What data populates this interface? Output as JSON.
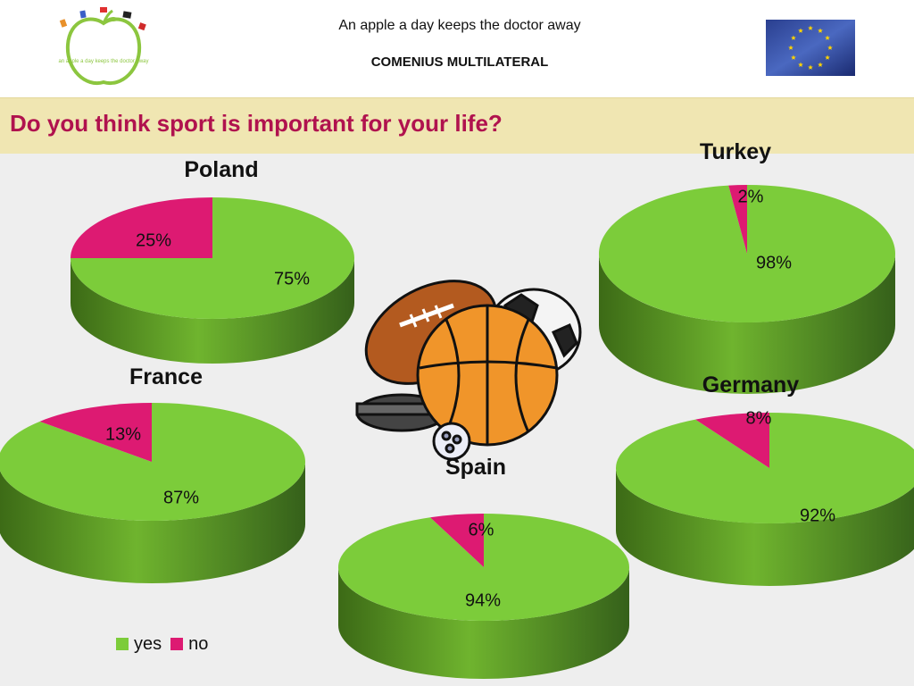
{
  "header": {
    "line1": "An apple a day keeps the doctor away",
    "line2": "COMENIUS MULTILATERAL",
    "logo_text": "an apple a day keeps the doctor away"
  },
  "question": "Do you think sport is important for your life?",
  "colors": {
    "yes": "#7ccc3a",
    "yes_side": "#4f8a1e",
    "no": "#dd1a72",
    "no_side": "#9a1050"
  },
  "legend": [
    {
      "label": "yes",
      "color": "#7ccc3a"
    },
    {
      "label": "no",
      "color": "#dd1a72"
    }
  ],
  "chart_data": [
    {
      "type": "pie",
      "title": "Poland",
      "labels": [
        "yes",
        "no"
      ],
      "values": [
        75,
        25
      ],
      "data_labels": [
        "75%",
        "25%"
      ]
    },
    {
      "type": "pie",
      "title": "Turkey",
      "labels": [
        "yes",
        "no"
      ],
      "values": [
        98,
        2
      ],
      "data_labels": [
        "98%",
        "2%"
      ]
    },
    {
      "type": "pie",
      "title": "France",
      "labels": [
        "yes",
        "no"
      ],
      "values": [
        87,
        13
      ],
      "data_labels": [
        "87%",
        "13%"
      ]
    },
    {
      "type": "pie",
      "title": "Germany",
      "labels": [
        "yes",
        "no"
      ],
      "values": [
        92,
        8
      ],
      "data_labels": [
        "92%",
        "8%"
      ]
    },
    {
      "type": "pie",
      "title": "Spain",
      "labels": [
        "yes",
        "no"
      ],
      "values": [
        94,
        6
      ],
      "data_labels": [
        "94%",
        "6%"
      ]
    }
  ]
}
